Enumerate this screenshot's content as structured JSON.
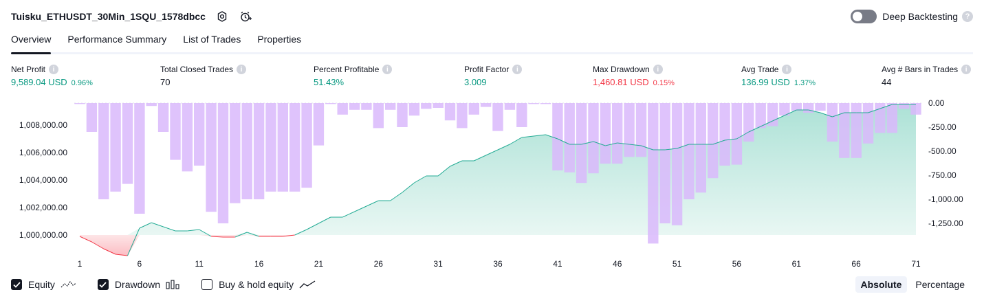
{
  "header": {
    "title": "Tuisku_ETHUSDT_30Min_1SQU_1578dbcc",
    "deep_backtesting_label": "Deep Backtesting"
  },
  "tabs": [
    {
      "label": "Overview",
      "active": true
    },
    {
      "label": "Performance Summary"
    },
    {
      "label": "List of Trades"
    },
    {
      "label": "Properties"
    }
  ],
  "metrics": [
    {
      "label": "Net Profit",
      "value": "9,589.04 USD",
      "pct": "0.96%",
      "color": "green"
    },
    {
      "label": "Total Closed Trades",
      "value": "70",
      "color": "dark"
    },
    {
      "label": "Percent Profitable",
      "value": "51.43%",
      "color": "green"
    },
    {
      "label": "Profit Factor",
      "value": "3.009",
      "color": "green"
    },
    {
      "label": "Max Drawdown",
      "value": "1,460.81 USD",
      "pct": "0.15%",
      "color": "red"
    },
    {
      "label": "Avg Trade",
      "value": "136.99 USD",
      "pct": "1.37%",
      "color": "green"
    },
    {
      "label": "Avg # Bars in Trades",
      "value": "44",
      "color": "dark"
    }
  ],
  "chart_data": {
    "type": "bar+area",
    "x": [
      1,
      2,
      3,
      4,
      5,
      6,
      7,
      8,
      9,
      10,
      11,
      12,
      13,
      14,
      15,
      16,
      17,
      18,
      19,
      20,
      21,
      22,
      23,
      24,
      25,
      26,
      27,
      28,
      29,
      30,
      31,
      32,
      33,
      34,
      35,
      36,
      37,
      38,
      39,
      40,
      41,
      42,
      43,
      44,
      45,
      46,
      47,
      48,
      49,
      50,
      51,
      52,
      53,
      54,
      55,
      56,
      57,
      58,
      59,
      60,
      61,
      62,
      63,
      64,
      65,
      66,
      67,
      68,
      69,
      70,
      71
    ],
    "x_ticks": [
      "1",
      "6",
      "11",
      "16",
      "21",
      "26",
      "31",
      "36",
      "41",
      "46",
      "51",
      "56",
      "61",
      "66",
      "71"
    ],
    "left_axis_ticks": [
      "1,000,000.00",
      "1,002,000.00",
      "1,004,000.00",
      "1,006,000.00",
      "1,008,000.00"
    ],
    "right_axis_ticks": [
      "0.00",
      "-250.00",
      "-500.00",
      "-750.00",
      "-1,000.00",
      "-1,250.00"
    ],
    "equity": [
      999900,
      999500,
      999000,
      998600,
      998500,
      1000500,
      1000900,
      1000600,
      1000300,
      1000300,
      1000400,
      999900,
      999850,
      999850,
      1000200,
      999900,
      999900,
      999900,
      1000000,
      1000400,
      1000850,
      1001300,
      1001300,
      1001700,
      1002100,
      1002500,
      1002500,
      1003100,
      1003800,
      1004300,
      1004300,
      1005000,
      1005400,
      1005400,
      1005800,
      1006200,
      1006600,
      1007100,
      1007200,
      1007300,
      1007000,
      1006600,
      1006600,
      1006800,
      1006500,
      1006700,
      1006600,
      1006500,
      1006200,
      1006200,
      1006300,
      1006600,
      1006600,
      1006600,
      1006900,
      1007000,
      1007500,
      1007900,
      1008300,
      1008700,
      1009100,
      1009100,
      1008900,
      1008600,
      1008900,
      1008900,
      1008900,
      1009200,
      1009500,
      1009500,
      1009500
    ],
    "drawdown": [
      -10,
      -300,
      -1000,
      -920,
      -840,
      -1150,
      -30,
      -300,
      -590,
      -710,
      -650,
      -1130,
      -1250,
      -1040,
      -1000,
      -1000,
      -920,
      -920,
      -920,
      -880,
      -440,
      -10,
      -120,
      -70,
      -70,
      -260,
      -70,
      -250,
      -130,
      -60,
      -50,
      -180,
      -260,
      -120,
      -40,
      -290,
      -70,
      -250,
      -10,
      -10,
      -700,
      -720,
      -830,
      -730,
      -630,
      -630,
      -560,
      -560,
      -1460,
      -1250,
      -1270,
      -1000,
      -930,
      -780,
      -650,
      -640,
      -400,
      -260,
      -240,
      -130,
      -80,
      -100,
      -80,
      -400,
      -570,
      -570,
      -420,
      -310,
      -310,
      -60,
      -120
    ],
    "equity_range": [
      998000,
      1009500
    ],
    "drawdown_range": [
      -1460.81,
      0
    ],
    "series": [
      {
        "name": "Equity"
      },
      {
        "name": "Drawdown"
      },
      {
        "name": "Buy & hold equity"
      }
    ],
    "colors": {
      "equity": "#22ab94",
      "equity_fill": "#c8ede5",
      "equity_loss": "#f23645",
      "drawdown": "#d9b8fb",
      "grid": "#e0e3eb"
    }
  },
  "legend": {
    "equity_label": "Equity",
    "drawdown_label": "Drawdown",
    "buy_hold_label": "Buy & hold equity",
    "equity_checked": true,
    "drawdown_checked": true,
    "buy_hold_checked": false
  },
  "mode": {
    "absolute_label": "Absolute",
    "percentage_label": "Percentage",
    "selected": "absolute"
  }
}
